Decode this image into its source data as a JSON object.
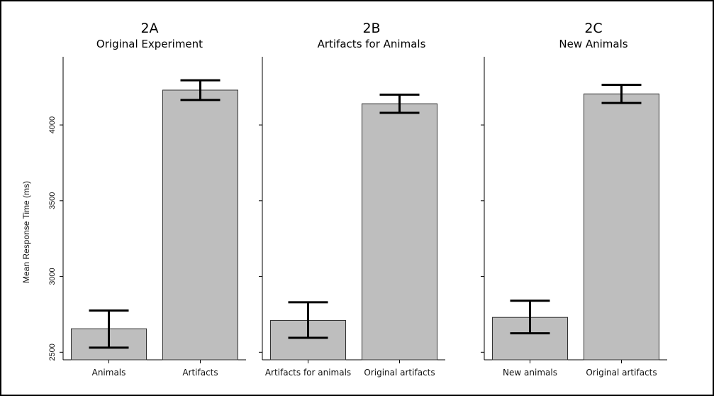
{
  "chart_data": [
    {
      "type": "bar",
      "title": "2A",
      "subtitle": "Original Experiment",
      "ylabel": "Mean Response Time (ms)",
      "ylim": [
        2450,
        4450
      ],
      "yticks": [
        2500,
        3000,
        3500,
        4000
      ],
      "categories": [
        "Animals",
        "Artifacts"
      ],
      "values": [
        2655,
        4230
      ],
      "error_low": [
        2530,
        4165
      ],
      "error_high": [
        2775,
        4295
      ],
      "bar_color": "#bebebe"
    },
    {
      "type": "bar",
      "title": "2B",
      "subtitle": "Artifacts for Animals",
      "ylabel": "",
      "ylim": [
        2450,
        4450
      ],
      "yticks": [
        2500,
        3000,
        3500,
        4000
      ],
      "categories": [
        "Artifacts for animals",
        "Original artifacts"
      ],
      "values": [
        2710,
        4140
      ],
      "error_low": [
        2595,
        4080
      ],
      "error_high": [
        2830,
        4200
      ],
      "bar_color": "#bebebe"
    },
    {
      "type": "bar",
      "title": "2C",
      "subtitle": "New Animals",
      "ylabel": "",
      "ylim": [
        2450,
        4450
      ],
      "yticks": [
        2500,
        3000,
        3500,
        4000
      ],
      "categories": [
        "New animals",
        "Original artifacts"
      ],
      "values": [
        2730,
        4205
      ],
      "error_low": [
        2625,
        4145
      ],
      "error_high": [
        2840,
        4265
      ],
      "bar_color": "#bebebe"
    }
  ],
  "colors": {
    "bar_fill": "#bebebe",
    "bar_stroke": "#333333",
    "axis": "#000000",
    "error_bar": "#000000",
    "frame": "#000000"
  }
}
